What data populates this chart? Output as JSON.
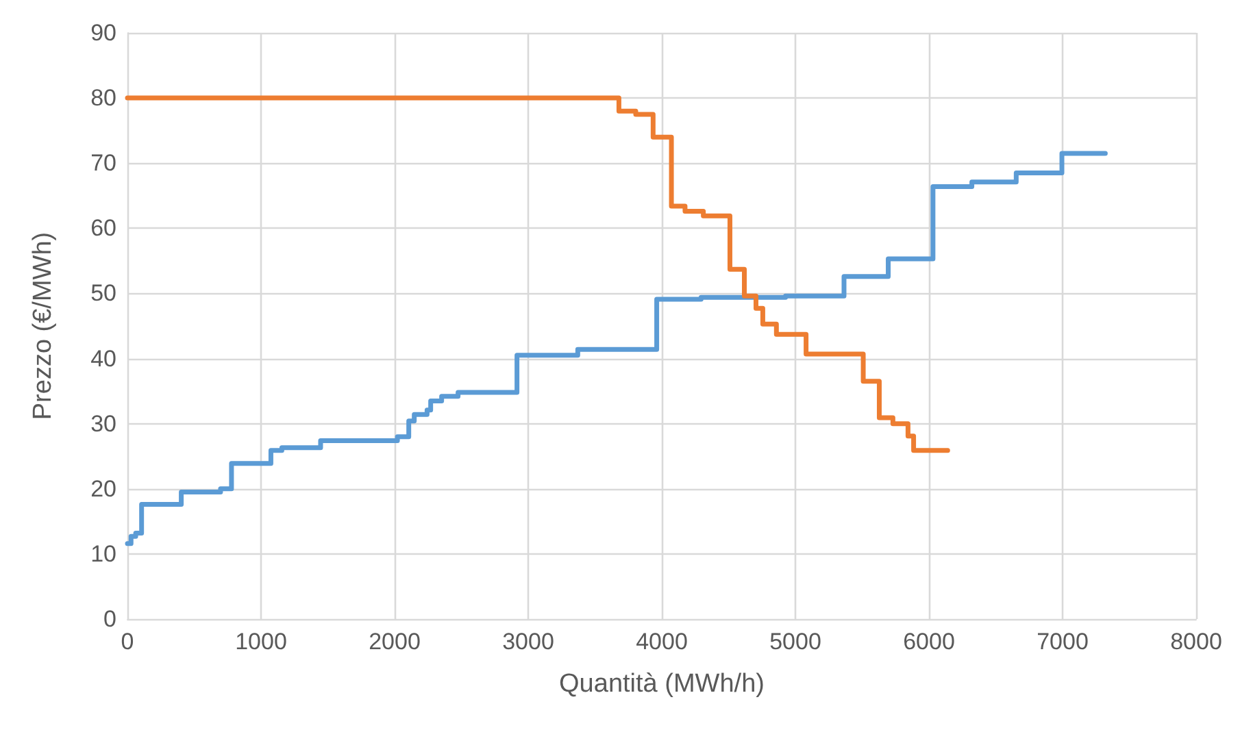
{
  "chart_data": {
    "type": "step",
    "xlabel": "Quantità (MWh/h)",
    "ylabel": "Prezzo (€/MWh)",
    "xlim": [
      0,
      8000
    ],
    "xticks": [
      0,
      1000,
      2000,
      3000,
      4000,
      5000,
      6000,
      7000,
      8000
    ],
    "ylim": [
      0,
      90
    ],
    "yticks": [
      0,
      10,
      20,
      30,
      40,
      50,
      60,
      70,
      80,
      90
    ],
    "grid": true,
    "marker": "none",
    "line_style": "solid",
    "series": [
      {
        "color": "#5b9bd5",
        "x": [
          0,
          27,
          62,
          106,
          403,
          697,
          779,
          1074,
          1156,
          1446,
          2021,
          2106,
          2147,
          2243,
          2270,
          2352,
          2475,
          2916,
          3371,
          3962,
          4294,
          4926,
          5364,
          5695,
          6030,
          6321,
          6653,
          6995,
          7320
        ],
        "values": [
          11.6,
          12.7,
          13.2,
          17.6,
          19.5,
          20.0,
          23.9,
          25.9,
          26.3,
          27.4,
          28.0,
          30.4,
          31.4,
          32.1,
          33.5,
          34.2,
          34.8,
          40.5,
          41.4,
          49.1,
          49.4,
          49.6,
          52.6,
          55.3,
          66.4,
          67.1,
          68.5,
          71.5,
          71.5
        ]
      },
      {
        "color": "#ed7d31",
        "x": [
          0,
          3679,
          3805,
          3935,
          4072,
          4174,
          4311,
          4510,
          4618,
          4705,
          4756,
          4858,
          5080,
          5508,
          5628,
          5730,
          5843,
          5885,
          6140
        ],
        "values": [
          80,
          78.0,
          77.5,
          74.0,
          63.4,
          62.6,
          61.9,
          53.7,
          49.6,
          47.7,
          45.3,
          43.7,
          40.7,
          36.5,
          30.9,
          30.0,
          28.1,
          25.9,
          25.9
        ]
      }
    ]
  }
}
